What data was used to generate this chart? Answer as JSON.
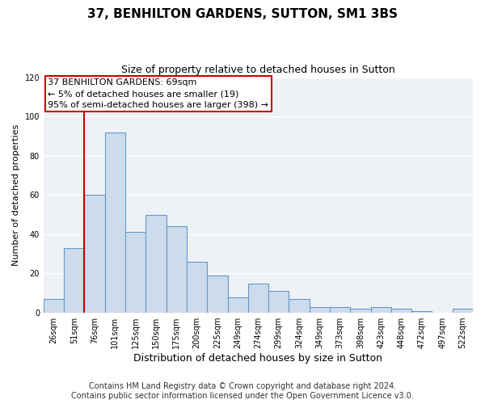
{
  "title": "37, BENHILTON GARDENS, SUTTON, SM1 3BS",
  "subtitle": "Size of property relative to detached houses in Sutton",
  "xlabel": "Distribution of detached houses by size in Sutton",
  "ylabel": "Number of detached properties",
  "bin_labels": [
    "26sqm",
    "51sqm",
    "76sqm",
    "101sqm",
    "125sqm",
    "150sqm",
    "175sqm",
    "200sqm",
    "225sqm",
    "249sqm",
    "274sqm",
    "299sqm",
    "324sqm",
    "349sqm",
    "373sqm",
    "398sqm",
    "423sqm",
    "448sqm",
    "472sqm",
    "497sqm",
    "522sqm"
  ],
  "bar_values": [
    7,
    33,
    60,
    92,
    41,
    50,
    44,
    26,
    19,
    8,
    15,
    11,
    7,
    3,
    3,
    2,
    3,
    2,
    1,
    0,
    2
  ],
  "bar_fill_color": "#ccdcec",
  "bar_edge_color": "#6699cc",
  "property_line_index": 2,
  "ylim": [
    0,
    120
  ],
  "yticks": [
    0,
    20,
    40,
    60,
    80,
    100,
    120
  ],
  "annotation_text": "37 BENHILTON GARDENS: 69sqm\n← 5% of detached houses are smaller (19)\n95% of semi-detached houses are larger (398) →",
  "annotation_box_edge_color": "#cc0000",
  "annotation_box_fill": "#ffffff",
  "line_color": "#cc0000",
  "footer_line1": "Contains HM Land Registry data © Crown copyright and database right 2024.",
  "footer_line2": "Contains public sector information licensed under the Open Government Licence v3.0.",
  "background_color": "#ffffff",
  "plot_background": "#eef2f7",
  "grid_color": "#ffffff",
  "title_fontsize": 11,
  "subtitle_fontsize": 9,
  "xlabel_fontsize": 9,
  "ylabel_fontsize": 8,
  "tick_fontsize": 7,
  "footer_fontsize": 7,
  "annotation_fontsize": 8
}
